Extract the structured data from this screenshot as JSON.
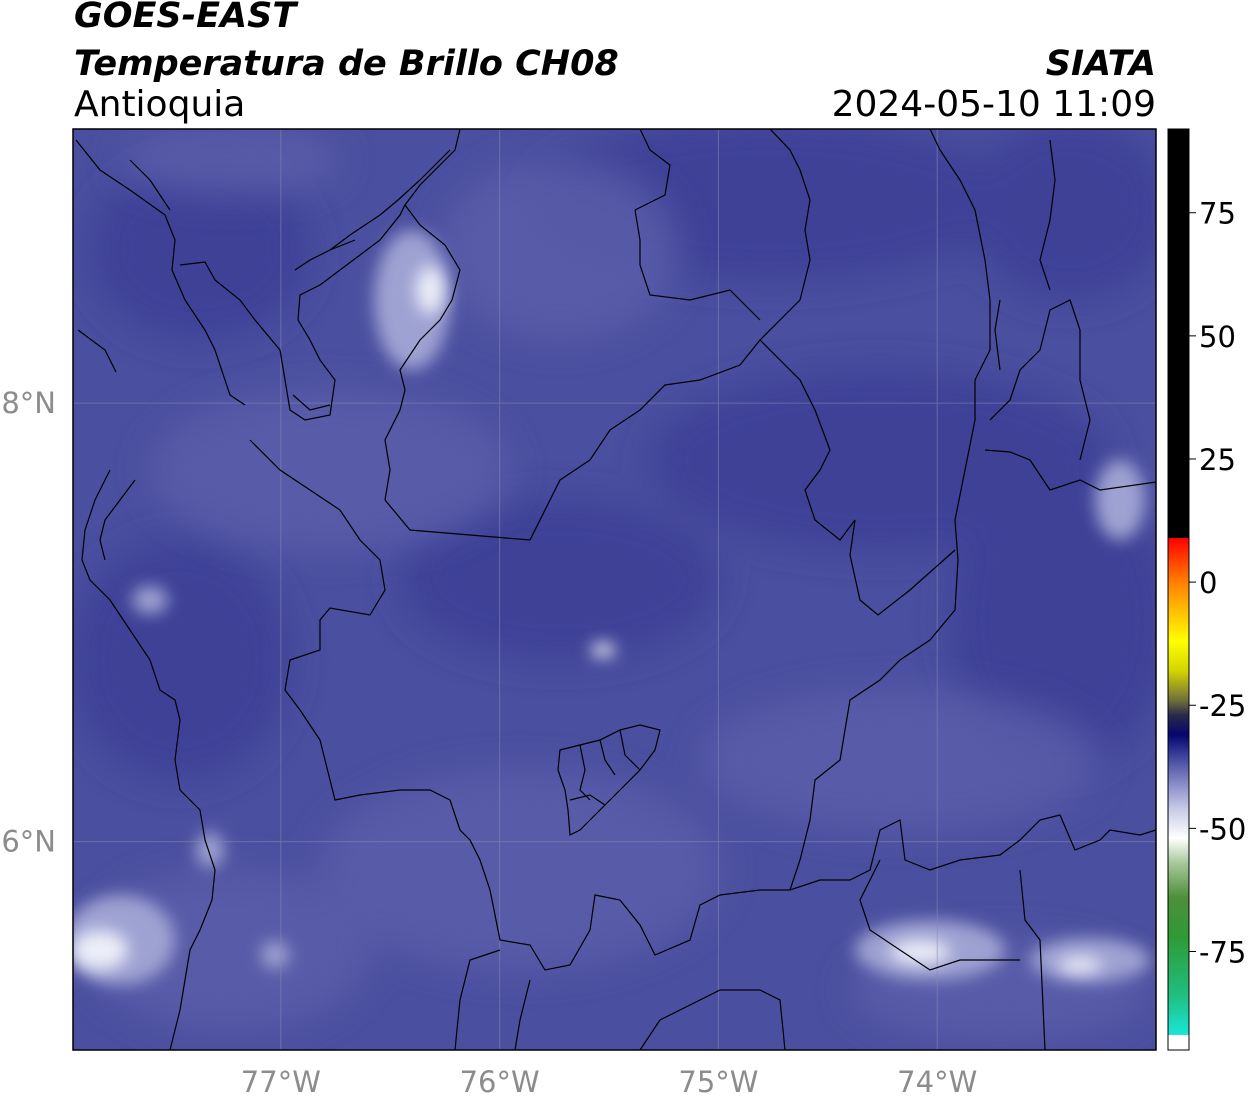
{
  "header": {
    "satellite": "GOES-EAST",
    "product": "Temperatura de Brillo CH08",
    "region": "Antioquia",
    "organization": "SIATA",
    "timestamp": "2024-05-10 11:09"
  },
  "map": {
    "lon_range": [
      -77.95,
      -73.0
    ],
    "lat_range": [
      5.05,
      9.25
    ],
    "lon_ticks": [
      {
        "value": -77,
        "label": "77°W"
      },
      {
        "value": -76,
        "label": "76°W"
      },
      {
        "value": -75,
        "label": "75°W"
      },
      {
        "value": -74,
        "label": "74°W"
      }
    ],
    "lat_ticks": [
      {
        "value": 8,
        "label": "8°N"
      },
      {
        "value": 6,
        "label": "6°N"
      }
    ],
    "grid": true,
    "base_color": "#4b4f9f",
    "colors": {
      "dark": "#3c4196",
      "light": "#5b5faa",
      "cloud": "#9ea2d2",
      "core": "#eceef8"
    }
  },
  "colorbar": {
    "range": [
      -95,
      92
    ],
    "ticks": [
      75,
      50,
      25,
      0,
      -25,
      -50,
      -75
    ],
    "stops": [
      {
        "value": -95,
        "color": "#ffffff"
      },
      {
        "value": -92,
        "color": "#ffffff"
      },
      {
        "value": -91.9,
        "color": "#19e6d9"
      },
      {
        "value": -84,
        "color": "#1fbf80"
      },
      {
        "value": -72,
        "color": "#2f9a35"
      },
      {
        "value": -64,
        "color": "#4e8f3c"
      },
      {
        "value": -57,
        "color": "#a7c99a"
      },
      {
        "value": -52,
        "color": "#ffffff"
      },
      {
        "value": -46,
        "color": "#c8cae6"
      },
      {
        "value": -40,
        "color": "#7c80c0"
      },
      {
        "value": -35,
        "color": "#3a3e99"
      },
      {
        "value": -31,
        "color": "#06066e"
      },
      {
        "value": -27,
        "color": "#2a2a4a"
      },
      {
        "value": -24,
        "color": "#6f6f3c"
      },
      {
        "value": -18,
        "color": "#d4d400"
      },
      {
        "value": -12,
        "color": "#ffff00"
      },
      {
        "value": -6,
        "color": "#ffc000"
      },
      {
        "value": 0,
        "color": "#ff8000"
      },
      {
        "value": 6,
        "color": "#ff2a00"
      },
      {
        "value": 8.9,
        "color": "#ff0000"
      },
      {
        "value": 9,
        "color": "#000000"
      },
      {
        "value": 92,
        "color": "#000000"
      }
    ]
  }
}
